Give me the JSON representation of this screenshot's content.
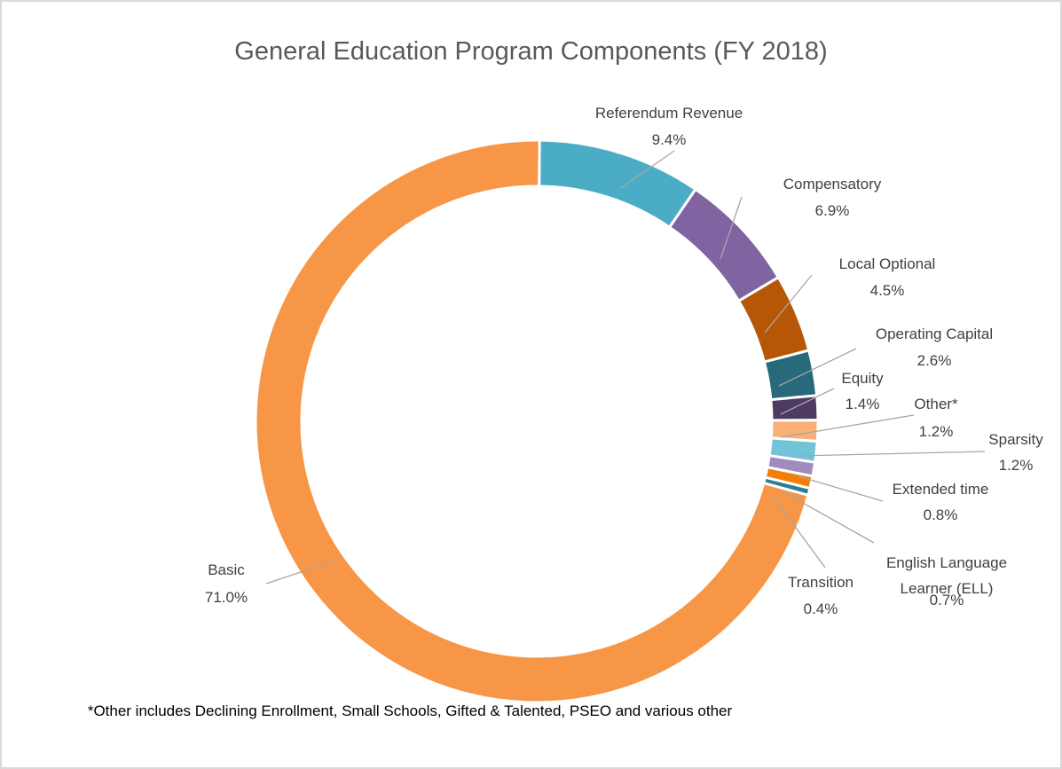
{
  "chart_data": {
    "type": "pie",
    "title": "General Education Program Components (FY 2018)",
    "categories": [
      "Referendum Revenue",
      "Compensatory",
      "Local Optional",
      "Operating Capital",
      "Equity",
      "Other*",
      "Sparsity",
      "Extended time",
      "English Language Learner (ELL)",
      "Transition",
      "Basic"
    ],
    "values": [
      9.4,
      6.9,
      4.5,
      2.6,
      1.4,
      1.2,
      1.2,
      0.8,
      0.7,
      0.4,
      71.0
    ],
    "value_labels": [
      "9.4%",
      "6.9%",
      "4.5%",
      "2.6%",
      "1.4%",
      "1.2%",
      "1.2%",
      "0.8%",
      "0.7%",
      "0.4%",
      "71.0%"
    ],
    "colors": [
      "#4bacc6",
      "#8064a2",
      "#b65708",
      "#276a7c",
      "#4d3b62",
      "#f9b076",
      "#73c3d8",
      "#a08bbf",
      "#f17f0a",
      "#2c7d93",
      "#f79646"
    ],
    "footnote": "*Other includes Declining Enrollment, Small Schools, Gifted & Talented, PSEO and various other"
  }
}
